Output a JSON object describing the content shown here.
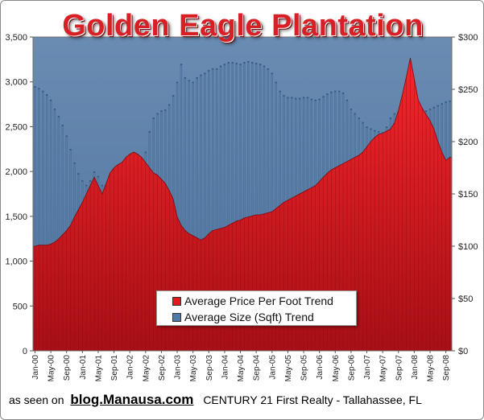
{
  "chart_data": {
    "type": "bar",
    "title": "Golden Eagle Plantation",
    "left_axis": {
      "ylim": [
        0,
        3500
      ],
      "ticks": [
        "0",
        "500",
        "1,000",
        "1,500",
        "2,000",
        "2,500",
        "3,000",
        "3,500"
      ]
    },
    "right_axis": {
      "ylim": [
        0,
        300
      ],
      "ticks": [
        "$0",
        "$50",
        "$100",
        "$150",
        "$200",
        "$250",
        "$300"
      ]
    },
    "x_tick_labels": [
      "Jan-00",
      "May-00",
      "Sep-00",
      "Jan-01",
      "May-01",
      "Sep-01",
      "Jan-02",
      "May-02",
      "Sep-02",
      "Jan-03",
      "May-03",
      "Sep-03",
      "Jan-04",
      "May-04",
      "Sep-04",
      "Jan-05",
      "May-05",
      "Sep-05",
      "Jan-06",
      "May-06",
      "Sep-06",
      "Jan-07",
      "May-07",
      "Sep-07",
      "Jan-08",
      "May-08",
      "Sep-08"
    ],
    "x_start": "2000-01",
    "months": 106,
    "series": [
      {
        "name": "Average Price Per Foot Trend",
        "axis": "right",
        "color": "#c8141c",
        "values": [
          100,
          101,
          101,
          101,
          102,
          104,
          107,
          111,
          115,
          120,
          128,
          135,
          142,
          150,
          158,
          166,
          158,
          150,
          160,
          170,
          175,
          178,
          180,
          185,
          188,
          190,
          188,
          185,
          180,
          175,
          170,
          168,
          164,
          160,
          153,
          145,
          128,
          120,
          115,
          112,
          110,
          108,
          106,
          108,
          112,
          115,
          116,
          117,
          118,
          120,
          122,
          124,
          125,
          127,
          128,
          129,
          130,
          130,
          131,
          132,
          133,
          136,
          139,
          142,
          144,
          146,
          148,
          150,
          152,
          154,
          156,
          158,
          162,
          166,
          170,
          173,
          175,
          177,
          179,
          181,
          183,
          185,
          187,
          190,
          195,
          200,
          204,
          207,
          208,
          210,
          212,
          218,
          230,
          245,
          262,
          280,
          260,
          240,
          232,
          226,
          220,
          212,
          200,
          190,
          182,
          185
        ]
      },
      {
        "name": "Average Size (Sqft) Trend",
        "axis": "left",
        "color": "#5b7fa6",
        "values": [
          2950,
          2930,
          2900,
          2860,
          2800,
          2700,
          2620,
          2520,
          2400,
          2250,
          2100,
          1980,
          1900,
          1850,
          1900,
          2000,
          1950,
          1850,
          1750,
          1700,
          1680,
          1690,
          1680,
          1670,
          1690,
          1720,
          1800,
          2000,
          2220,
          2450,
          2600,
          2650,
          2680,
          2690,
          2750,
          2850,
          3000,
          3200,
          3050,
          3020,
          3000,
          3050,
          3080,
          3100,
          3130,
          3150,
          3150,
          3180,
          3200,
          3220,
          3220,
          3210,
          3200,
          3220,
          3230,
          3220,
          3210,
          3200,
          3180,
          3150,
          3100,
          3000,
          2900,
          2850,
          2830,
          2830,
          2820,
          2820,
          2830,
          2830,
          2810,
          2800,
          2810,
          2840,
          2870,
          2890,
          2900,
          2900,
          2880,
          2800,
          2700,
          2650,
          2600,
          2550,
          2500,
          2480,
          2460,
          2450,
          2440,
          2500,
          2600,
          2650,
          2650,
          2500,
          2400,
          2350,
          2400,
          2500,
          2600,
          2680,
          2700,
          2720,
          2740,
          2760,
          2780,
          2790
        ]
      }
    ],
    "legend_position": "bottom-center"
  },
  "legend": {
    "price_label": "Average Price Per Foot Trend",
    "size_label": "Average Size (Sqft) Trend"
  },
  "footer": {
    "prefix": "as seen on",
    "blog": "blog.Manausa.com",
    "company": "CENTURY 21 First Realty - Tallahassee,  FL"
  },
  "colors": {
    "plot_bg": "#5c7fa8",
    "size_bar": "#577da6",
    "price_area": "#c8141c",
    "legend_red": "#e3191f",
    "legend_blue": "#4f79a8"
  }
}
